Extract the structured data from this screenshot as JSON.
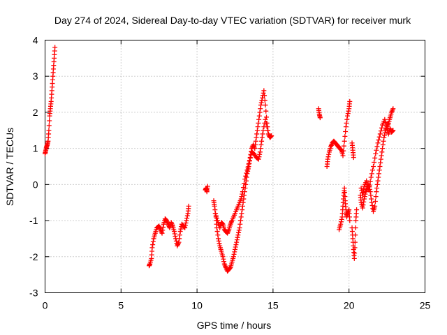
{
  "chart_data": {
    "type": "scatter",
    "title": "Day 274 of 2024, Sidereal Day-to-day VTEC variation (SDTVAR) for receiver murk",
    "xlabel": "GPS time / hours",
    "ylabel": "SDTVAR / TECUs",
    "xlim": [
      0,
      25
    ],
    "ylim": [
      -3,
      4
    ],
    "xticks": [
      0,
      5,
      10,
      15,
      20,
      25
    ],
    "yticks": [
      -3,
      -2,
      -1,
      0,
      1,
      2,
      3,
      4
    ],
    "xtick_labels": [
      "0",
      "5",
      "10",
      "15",
      "20",
      "25"
    ],
    "ytick_labels": [
      "-3",
      "-2",
      "-1",
      "0",
      "1",
      "2",
      "3",
      "4"
    ],
    "grid": true,
    "marker": "+",
    "color": "#ff0000",
    "series": [
      {
        "name": "SDTVAR",
        "segments": [
          [
            [
              0.0,
              0.85
            ],
            [
              0.05,
              0.95
            ],
            [
              0.1,
              1.05
            ],
            [
              0.15,
              1.1
            ],
            [
              0.2,
              1.2
            ],
            [
              0.25,
              1.5
            ],
            [
              0.3,
              1.9
            ],
            [
              0.35,
              2.1
            ],
            [
              0.4,
              2.3
            ],
            [
              0.45,
              2.6
            ],
            [
              0.5,
              2.9
            ],
            [
              0.55,
              3.2
            ],
            [
              0.6,
              3.5
            ],
            [
              0.65,
              3.8
            ]
          ],
          [
            [
              6.85,
              -2.25
            ],
            [
              6.9,
              -2.2
            ],
            [
              7.0,
              -2.05
            ],
            [
              7.05,
              -1.75
            ],
            [
              7.15,
              -1.5
            ],
            [
              7.25,
              -1.35
            ],
            [
              7.35,
              -1.2
            ],
            [
              7.5,
              -1.15
            ],
            [
              7.6,
              -1.25
            ],
            [
              7.7,
              -1.35
            ],
            [
              7.8,
              -1.1
            ],
            [
              7.9,
              -0.95
            ],
            [
              8.0,
              -1.0
            ],
            [
              8.1,
              -1.1
            ],
            [
              8.2,
              -1.2
            ],
            [
              8.3,
              -1.05
            ],
            [
              8.4,
              -1.15
            ],
            [
              8.5,
              -1.3
            ],
            [
              8.6,
              -1.5
            ],
            [
              8.7,
              -1.7
            ],
            [
              8.8,
              -1.6
            ],
            [
              8.9,
              -1.3
            ],
            [
              9.0,
              -1.1
            ],
            [
              9.1,
              -1.15
            ],
            [
              9.2,
              -1.2
            ],
            [
              9.3,
              -1.0
            ],
            [
              9.4,
              -0.8
            ],
            [
              9.45,
              -0.6
            ]
          ],
          [
            [
              10.55,
              -0.15
            ],
            [
              10.6,
              -0.1
            ],
            [
              10.65,
              -0.2
            ],
            [
              10.7,
              -0.05
            ]
          ],
          [
            [
              11.1,
              -0.45
            ],
            [
              11.15,
              -0.6
            ],
            [
              11.25,
              -0.9
            ],
            [
              11.3,
              -1.2
            ],
            [
              11.4,
              -1.5
            ],
            [
              11.5,
              -1.7
            ],
            [
              11.6,
              -1.85
            ],
            [
              11.7,
              -2.0
            ],
            [
              11.8,
              -2.2
            ],
            [
              11.9,
              -2.3
            ],
            [
              12.0,
              -2.4
            ],
            [
              12.1,
              -2.35
            ],
            [
              12.2,
              -2.3
            ],
            [
              12.3,
              -2.15
            ],
            [
              12.4,
              -2.0
            ],
            [
              12.5,
              -1.8
            ],
            [
              12.6,
              -1.6
            ],
            [
              12.7,
              -1.4
            ],
            [
              12.8,
              -1.2
            ],
            [
              12.9,
              -0.9
            ],
            [
              13.0,
              -0.6
            ],
            [
              13.1,
              -0.3
            ],
            [
              13.2,
              0.0
            ],
            [
              13.3,
              0.3
            ],
            [
              13.4,
              0.5
            ],
            [
              13.5,
              0.75
            ],
            [
              13.6,
              1.0
            ],
            [
              13.7,
              1.1
            ],
            [
              13.8,
              1.0
            ],
            [
              13.9,
              1.3
            ],
            [
              14.0,
              1.6
            ],
            [
              14.1,
              1.9
            ],
            [
              14.2,
              2.2
            ],
            [
              14.3,
              2.4
            ],
            [
              14.4,
              2.6
            ],
            [
              14.5,
              2.2
            ],
            [
              14.6,
              1.7
            ],
            [
              14.7,
              1.4
            ],
            [
              14.8,
              1.3
            ],
            [
              14.9,
              1.35
            ]
          ],
          [
            [
              11.2,
              -0.8
            ],
            [
              11.35,
              -1.0
            ],
            [
              11.5,
              -1.2
            ],
            [
              11.6,
              -1.05
            ],
            [
              11.7,
              -1.1
            ],
            [
              11.8,
              -1.25
            ],
            [
              11.9,
              -1.3
            ],
            [
              12.0,
              -1.35
            ],
            [
              12.1,
              -1.25
            ],
            [
              12.2,
              -1.1
            ],
            [
              12.3,
              -1.0
            ],
            [
              12.45,
              -0.85
            ],
            [
              12.6,
              -0.7
            ],
            [
              12.75,
              -0.55
            ],
            [
              12.9,
              -0.4
            ],
            [
              13.0,
              -0.2
            ],
            [
              13.15,
              0.15
            ],
            [
              13.3,
              0.4
            ],
            [
              13.45,
              0.65
            ],
            [
              13.6,
              0.9
            ],
            [
              13.75,
              0.85
            ],
            [
              13.9,
              0.75
            ],
            [
              14.05,
              0.7
            ],
            [
              14.15,
              0.9
            ],
            [
              14.25,
              1.2
            ],
            [
              14.35,
              1.5
            ],
            [
              14.5,
              1.8
            ],
            [
              14.65,
              1.5
            ]
          ],
          [
            [
              18.0,
              2.1
            ],
            [
              18.05,
              1.95
            ],
            [
              18.1,
              1.85
            ]
          ],
          [
            [
              18.55,
              0.5
            ],
            [
              18.6,
              0.7
            ],
            [
              18.7,
              0.9
            ],
            [
              18.8,
              1.05
            ],
            [
              18.9,
              1.15
            ],
            [
              19.0,
              1.2
            ],
            [
              19.1,
              1.15
            ],
            [
              19.2,
              1.1
            ],
            [
              19.3,
              1.05
            ],
            [
              19.4,
              1.0
            ],
            [
              19.5,
              0.95
            ],
            [
              19.6,
              0.8
            ],
            [
              19.7,
              1.2
            ],
            [
              19.8,
              1.6
            ],
            [
              19.9,
              1.9
            ],
            [
              20.0,
              2.1
            ],
            [
              20.05,
              2.3
            ]
          ],
          [
            [
              19.35,
              -1.25
            ],
            [
              19.45,
              -1.1
            ],
            [
              19.55,
              -0.9
            ],
            [
              19.6,
              -0.6
            ],
            [
              19.65,
              -0.3
            ],
            [
              19.7,
              -0.1
            ],
            [
              19.75,
              -0.45
            ],
            [
              19.8,
              -0.7
            ],
            [
              19.85,
              -0.9
            ],
            [
              19.9,
              -0.8
            ],
            [
              20.0,
              -0.7
            ],
            [
              20.05,
              -1.0
            ]
          ],
          [
            [
              20.2,
              1.15
            ],
            [
              20.25,
              0.95
            ],
            [
              20.3,
              0.75
            ]
          ],
          [
            [
              20.2,
              -1.2
            ],
            [
              20.25,
              -1.5
            ],
            [
              20.3,
              -1.8
            ],
            [
              20.35,
              -2.05
            ],
            [
              20.4,
              -1.6
            ],
            [
              20.45,
              -1.0
            ],
            [
              20.5,
              -0.7
            ]
          ],
          [
            [
              20.75,
              -0.3
            ],
            [
              20.8,
              -0.5
            ],
            [
              20.9,
              -0.65
            ],
            [
              21.0,
              -0.4
            ],
            [
              21.1,
              -0.2
            ],
            [
              21.2,
              -0.1
            ],
            [
              21.3,
              0.0
            ],
            [
              21.4,
              -0.2
            ],
            [
              21.5,
              -0.5
            ],
            [
              21.6,
              -0.75
            ],
            [
              21.7,
              -0.6
            ],
            [
              21.8,
              -0.2
            ],
            [
              21.9,
              0.1
            ],
            [
              22.0,
              0.4
            ],
            [
              22.1,
              0.7
            ],
            [
              22.2,
              1.0
            ],
            [
              22.3,
              1.3
            ],
            [
              22.4,
              1.5
            ],
            [
              22.5,
              1.6
            ],
            [
              22.6,
              1.7
            ],
            [
              22.7,
              1.85
            ],
            [
              22.8,
              2.0
            ],
            [
              22.9,
              2.1
            ]
          ],
          [
            [
              20.8,
              -0.1
            ],
            [
              20.9,
              -0.3
            ],
            [
              21.0,
              -0.05
            ],
            [
              21.15,
              0.1
            ],
            [
              21.3,
              -0.15
            ],
            [
              21.45,
              0.2
            ],
            [
              21.6,
              0.5
            ],
            [
              21.75,
              0.85
            ],
            [
              21.9,
              1.15
            ],
            [
              22.05,
              1.4
            ],
            [
              22.2,
              1.65
            ],
            [
              22.35,
              1.8
            ],
            [
              22.5,
              1.55
            ],
            [
              22.6,
              1.4
            ],
            [
              22.7,
              1.55
            ],
            [
              22.8,
              1.45
            ],
            [
              22.9,
              1.5
            ]
          ]
        ]
      }
    ]
  }
}
